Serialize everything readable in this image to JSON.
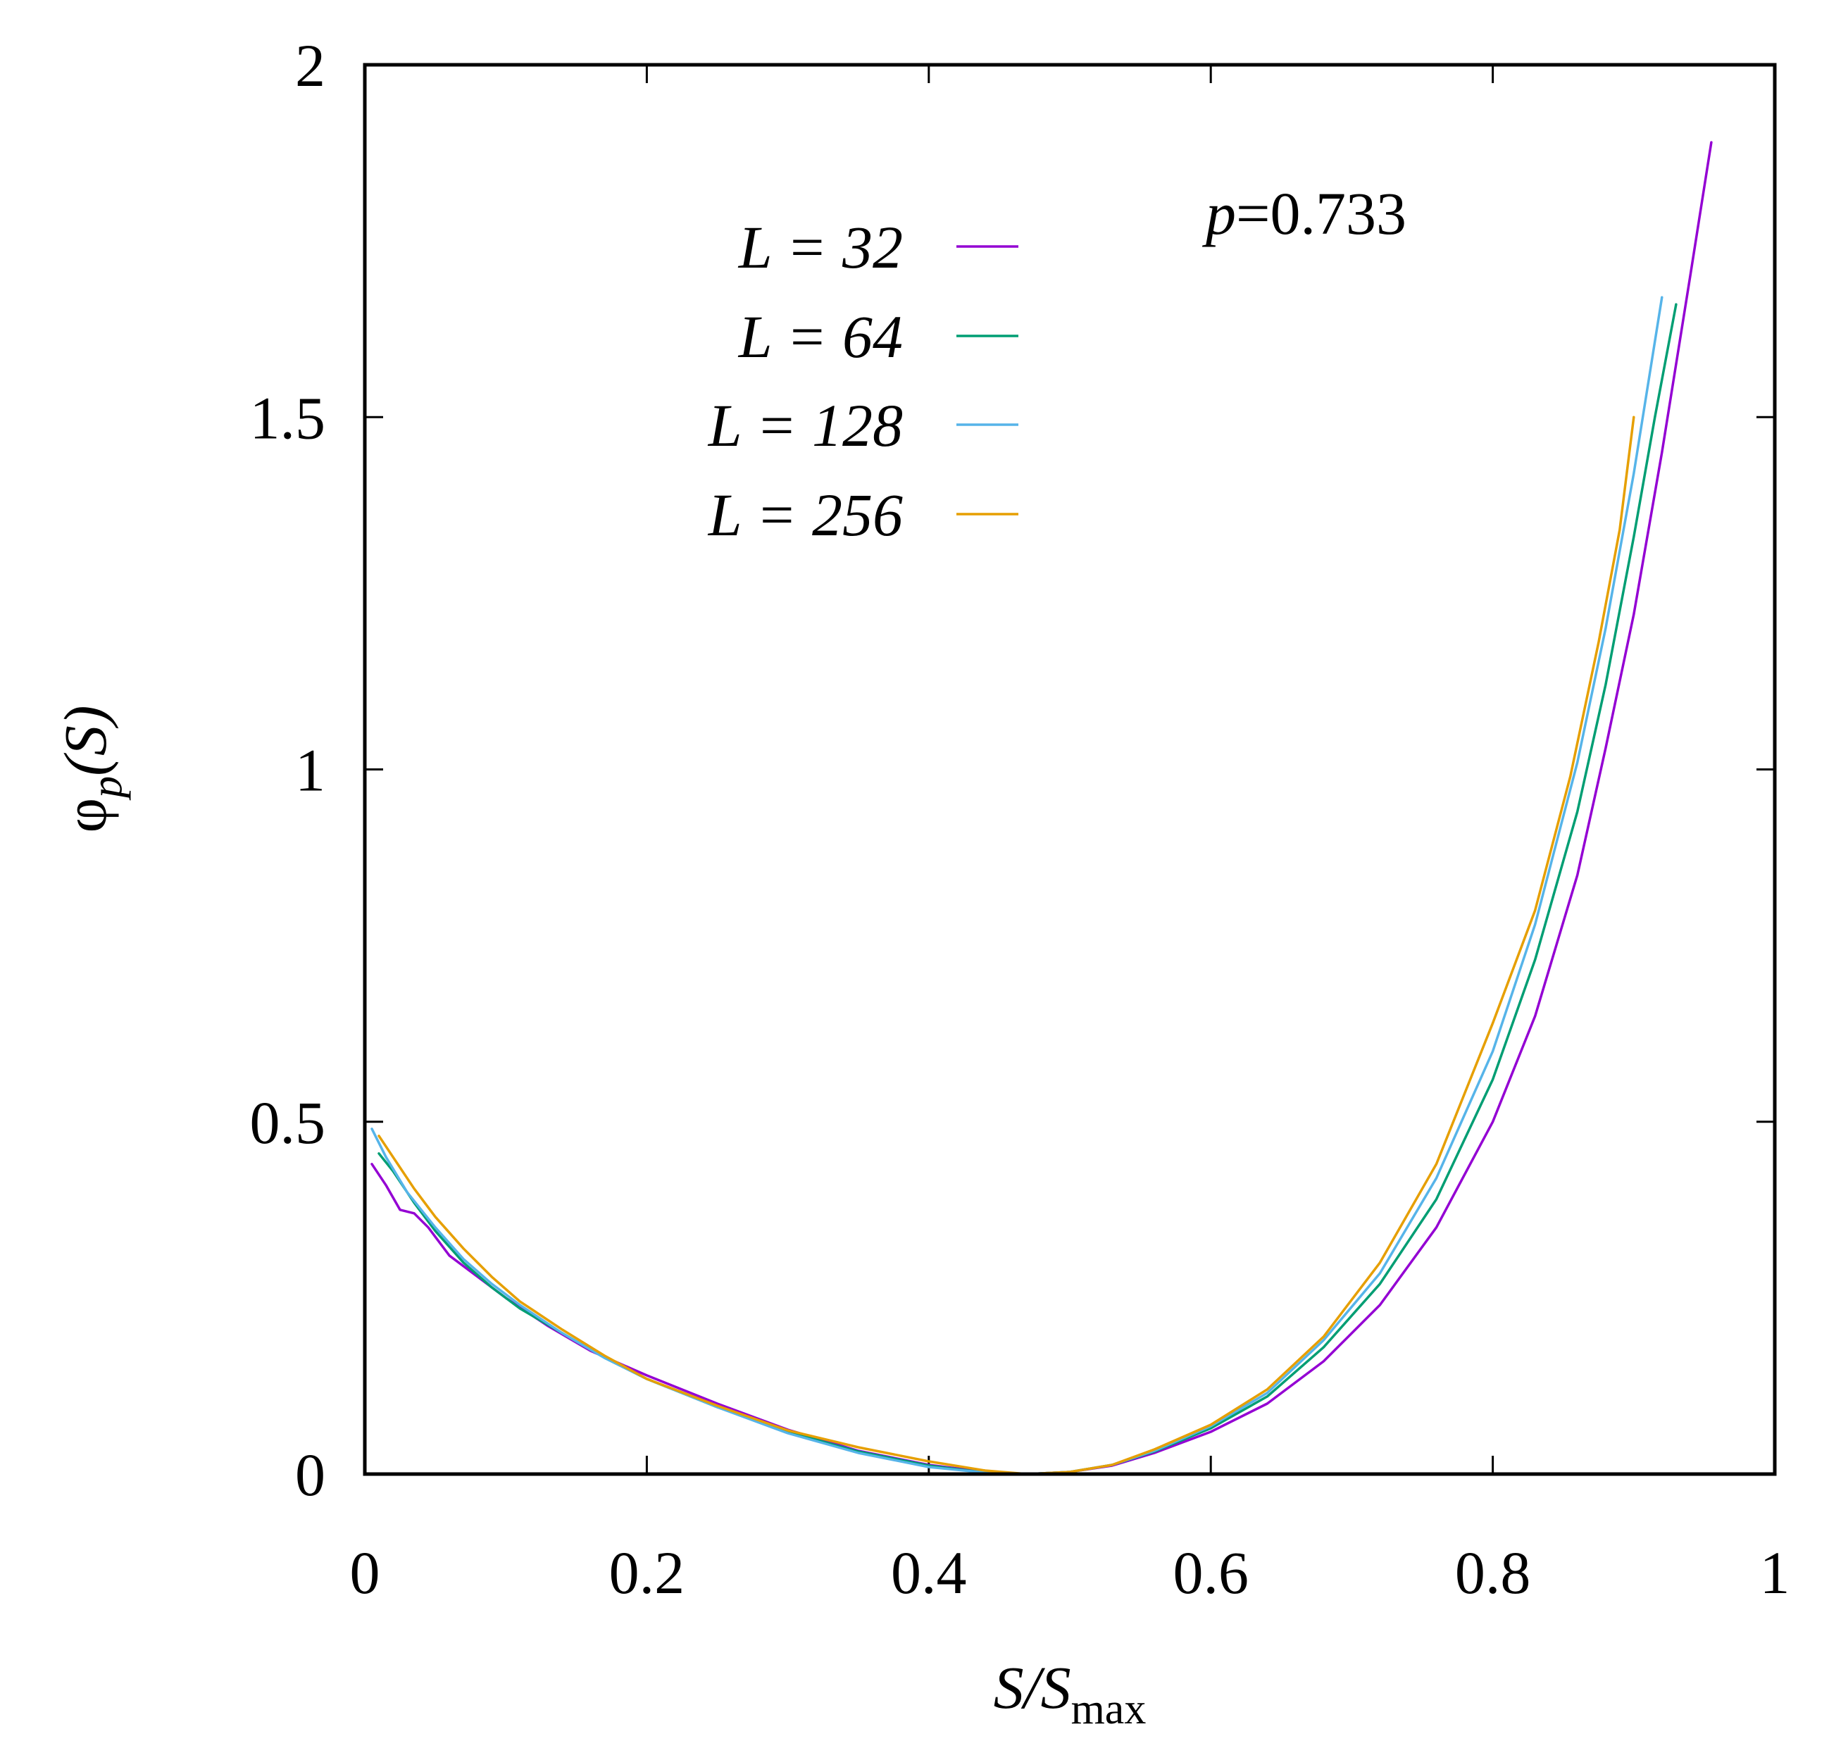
{
  "chart_data": {
    "type": "line",
    "xlabel": {
      "main": "S/S",
      "sub": "max"
    },
    "ylabel": {
      "main": "φ",
      "sub": "p",
      "rest": "(S)"
    },
    "xlim": [
      0,
      1
    ],
    "ylim": [
      0,
      2
    ],
    "xticks": [
      {
        "value": 0,
        "label": "0"
      },
      {
        "value": 0.2,
        "label": "0.2"
      },
      {
        "value": 0.4,
        "label": "0.4"
      },
      {
        "value": 0.6,
        "label": "0.6"
      },
      {
        "value": 0.8,
        "label": "0.8"
      },
      {
        "value": 1,
        "label": "1"
      }
    ],
    "yticks": [
      {
        "value": 0,
        "label": "0"
      },
      {
        "value": 0.5,
        "label": "0.5"
      },
      {
        "value": 1,
        "label": "1"
      },
      {
        "value": 1.5,
        "label": "1.5"
      },
      {
        "value": 2,
        "label": "2"
      }
    ],
    "annotation": {
      "var": "p",
      "text": "=0.733"
    },
    "legend_position": "top-left",
    "series": [
      {
        "name": "L = 32",
        "color": "#9400d3",
        "points": [
          [
            0.005,
            0.44
          ],
          [
            0.015,
            0.41
          ],
          [
            0.025,
            0.375
          ],
          [
            0.035,
            0.37
          ],
          [
            0.045,
            0.35
          ],
          [
            0.06,
            0.31
          ],
          [
            0.08,
            0.28
          ],
          [
            0.1,
            0.25
          ],
          [
            0.13,
            0.21
          ],
          [
            0.16,
            0.175
          ],
          [
            0.2,
            0.14
          ],
          [
            0.25,
            0.1
          ],
          [
            0.3,
            0.063
          ],
          [
            0.35,
            0.033
          ],
          [
            0.4,
            0.013
          ],
          [
            0.44,
            0.003
          ],
          [
            0.47,
            0
          ],
          [
            0.5,
            0.003
          ],
          [
            0.53,
            0.012
          ],
          [
            0.56,
            0.03
          ],
          [
            0.6,
            0.06
          ],
          [
            0.64,
            0.1
          ],
          [
            0.68,
            0.16
          ],
          [
            0.72,
            0.24
          ],
          [
            0.76,
            0.35
          ],
          [
            0.8,
            0.5
          ],
          [
            0.83,
            0.65
          ],
          [
            0.86,
            0.85
          ],
          [
            0.88,
            1.03
          ],
          [
            0.9,
            1.22
          ],
          [
            0.92,
            1.45
          ],
          [
            0.94,
            1.7
          ],
          [
            0.955,
            1.89
          ]
        ]
      },
      {
        "name": "L = 64",
        "color": "#009e73",
        "points": [
          [
            0.01,
            0.455
          ],
          [
            0.02,
            0.43
          ],
          [
            0.035,
            0.385
          ],
          [
            0.05,
            0.345
          ],
          [
            0.07,
            0.3
          ],
          [
            0.09,
            0.265
          ],
          [
            0.11,
            0.235
          ],
          [
            0.14,
            0.2
          ],
          [
            0.17,
            0.165
          ],
          [
            0.2,
            0.135
          ],
          [
            0.25,
            0.095
          ],
          [
            0.3,
            0.06
          ],
          [
            0.35,
            0.032
          ],
          [
            0.4,
            0.012
          ],
          [
            0.44,
            0.002
          ],
          [
            0.47,
            0
          ],
          [
            0.5,
            0.003
          ],
          [
            0.53,
            0.013
          ],
          [
            0.56,
            0.032
          ],
          [
            0.6,
            0.065
          ],
          [
            0.64,
            0.11
          ],
          [
            0.68,
            0.18
          ],
          [
            0.72,
            0.27
          ],
          [
            0.76,
            0.39
          ],
          [
            0.8,
            0.56
          ],
          [
            0.83,
            0.73
          ],
          [
            0.86,
            0.94
          ],
          [
            0.88,
            1.12
          ],
          [
            0.9,
            1.33
          ],
          [
            0.915,
            1.5
          ],
          [
            0.93,
            1.66
          ]
        ]
      },
      {
        "name": "L = 128",
        "color": "#56b4e9",
        "points": [
          [
            0.005,
            0.49
          ],
          [
            0.015,
            0.45
          ],
          [
            0.03,
            0.4
          ],
          [
            0.05,
            0.35
          ],
          [
            0.07,
            0.305
          ],
          [
            0.09,
            0.27
          ],
          [
            0.11,
            0.24
          ],
          [
            0.14,
            0.2
          ],
          [
            0.17,
            0.165
          ],
          [
            0.2,
            0.135
          ],
          [
            0.25,
            0.095
          ],
          [
            0.3,
            0.058
          ],
          [
            0.35,
            0.03
          ],
          [
            0.4,
            0.01
          ],
          [
            0.44,
            0.002
          ],
          [
            0.47,
            0
          ],
          [
            0.5,
            0.003
          ],
          [
            0.53,
            0.013
          ],
          [
            0.56,
            0.033
          ],
          [
            0.6,
            0.068
          ],
          [
            0.64,
            0.115
          ],
          [
            0.68,
            0.19
          ],
          [
            0.72,
            0.285
          ],
          [
            0.76,
            0.42
          ],
          [
            0.8,
            0.6
          ],
          [
            0.83,
            0.78
          ],
          [
            0.86,
            1.01
          ],
          [
            0.88,
            1.2
          ],
          [
            0.9,
            1.42
          ],
          [
            0.92,
            1.67
          ]
        ]
      },
      {
        "name": "L = 256",
        "color": "#e69f00",
        "points": [
          [
            0.01,
            0.48
          ],
          [
            0.02,
            0.45
          ],
          [
            0.035,
            0.405
          ],
          [
            0.05,
            0.365
          ],
          [
            0.07,
            0.32
          ],
          [
            0.09,
            0.28
          ],
          [
            0.11,
            0.245
          ],
          [
            0.14,
            0.205
          ],
          [
            0.17,
            0.168
          ],
          [
            0.2,
            0.135
          ],
          [
            0.25,
            0.097
          ],
          [
            0.3,
            0.062
          ],
          [
            0.35,
            0.038
          ],
          [
            0.4,
            0.018
          ],
          [
            0.44,
            0.005
          ],
          [
            0.47,
            0
          ],
          [
            0.5,
            0.003
          ],
          [
            0.53,
            0.013
          ],
          [
            0.56,
            0.035
          ],
          [
            0.6,
            0.07
          ],
          [
            0.64,
            0.12
          ],
          [
            0.68,
            0.195
          ],
          [
            0.72,
            0.3
          ],
          [
            0.76,
            0.44
          ],
          [
            0.8,
            0.64
          ],
          [
            0.83,
            0.8
          ],
          [
            0.855,
            0.99
          ],
          [
            0.875,
            1.18
          ],
          [
            0.89,
            1.34
          ],
          [
            0.9,
            1.5
          ]
        ]
      }
    ]
  }
}
